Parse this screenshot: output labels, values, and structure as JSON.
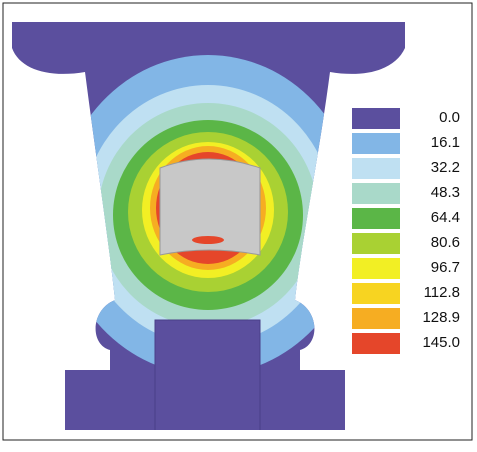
{
  "legend": {
    "items": [
      {
        "label": "0.0",
        "color": "#5b4f9e"
      },
      {
        "label": "16.1",
        "color": "#82b6e6"
      },
      {
        "label": "32.2",
        "color": "#bfe0f2"
      },
      {
        "label": "48.3",
        "color": "#a9d9c9"
      },
      {
        "label": "64.4",
        "color": "#5bb647"
      },
      {
        "label": "80.6",
        "color": "#a9d133"
      },
      {
        "label": "96.7",
        "color": "#f2ef24"
      },
      {
        "label": "112.8",
        "color": "#f7d421"
      },
      {
        "label": "128.9",
        "color": "#f6ad22"
      },
      {
        "label": "145.0",
        "color": "#e5462a"
      }
    ]
  }
}
